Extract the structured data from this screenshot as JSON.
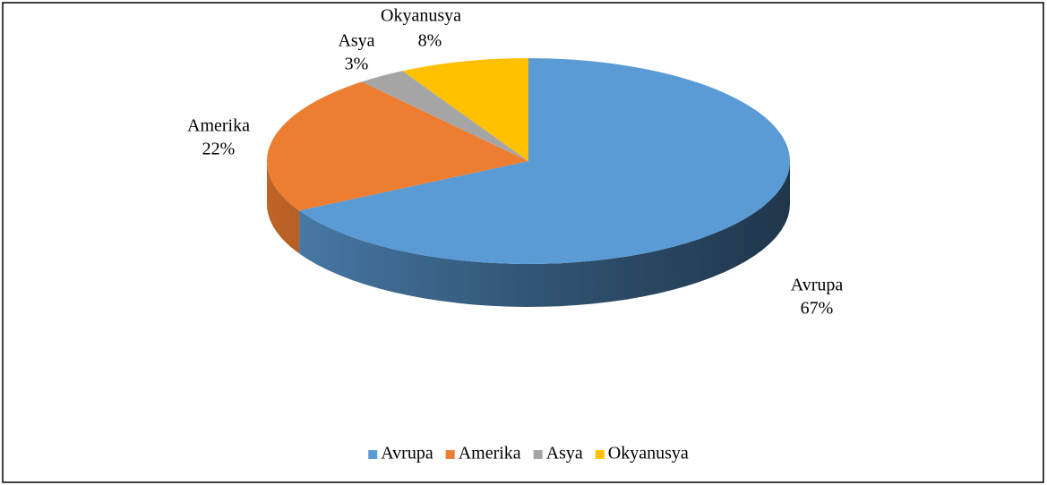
{
  "chart_data": {
    "type": "pie",
    "three_d": true,
    "categories": [
      "Avrupa",
      "Amerika",
      "Asya",
      "Okyanusya"
    ],
    "values": [
      67,
      22,
      3,
      8
    ],
    "value_labels": [
      "67%",
      "22%",
      "3%",
      "8%"
    ],
    "colors": [
      "#5b9bd5",
      "#ed7d31",
      "#a5a5a5",
      "#ffc000"
    ],
    "legend": "bottom"
  }
}
